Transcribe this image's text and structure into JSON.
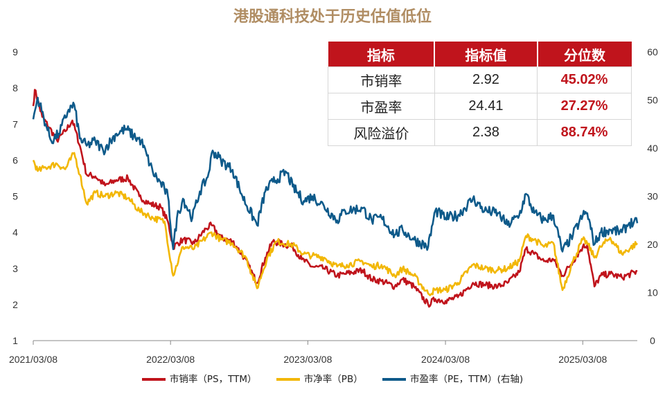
{
  "title": "港股通科技处于历史估值低位",
  "table": {
    "headers": [
      "指标",
      "指标值",
      "分位数"
    ],
    "rows": [
      {
        "name": "市销率",
        "value": "2.92",
        "pct": "45.02%"
      },
      {
        "name": "市盈率",
        "value": "24.41",
        "pct": "27.27%"
      },
      {
        "name": "风险溢价",
        "value": "2.38",
        "pct": "88.74%"
      }
    ]
  },
  "colors": {
    "ps": "#c0141c",
    "pb": "#f2b705",
    "pe": "#0e5a8a",
    "header_bg": "#c0141c",
    "title": "#b08d63"
  },
  "chart_data": {
    "type": "line",
    "title": "港股通科技处于历史估值低位",
    "x_ticks": [
      "2021/03/08",
      "2022/03/08",
      "2023/03/08",
      "2024/03/08",
      "2025/03/08"
    ],
    "x_range": [
      "2021/03/08",
      "2025/07/31"
    ],
    "left_axis": {
      "min": 1,
      "max": 9,
      "ticks": [
        1,
        2,
        3,
        4,
        5,
        6,
        7,
        8,
        9
      ]
    },
    "right_axis": {
      "min": 0,
      "max": 60,
      "ticks": [
        0,
        10,
        20,
        30,
        40,
        50,
        60
      ]
    },
    "legend_position": "bottom",
    "grid": false,
    "series": [
      {
        "name": "市销率（PS，TTM）",
        "axis": "left",
        "color": "#c0141c",
        "points": [
          [
            "2021/03/08",
            7.5
          ],
          [
            "2021/03/12",
            7.95
          ],
          [
            "2021/04/01",
            7.2
          ],
          [
            "2021/04/20",
            6.9
          ],
          [
            "2021/05/10",
            6.55
          ],
          [
            "2021/06/01",
            6.8
          ],
          [
            "2021/06/20",
            7.1
          ],
          [
            "2021/07/10",
            6.4
          ],
          [
            "2021/07/28",
            5.6
          ],
          [
            "2021/08/20",
            5.55
          ],
          [
            "2021/09/15",
            5.3
          ],
          [
            "2021/10/15",
            5.45
          ],
          [
            "2021/11/15",
            5.5
          ],
          [
            "2021/12/15",
            5.0
          ],
          [
            "2022/01/10",
            4.8
          ],
          [
            "2022/02/10",
            4.7
          ],
          [
            "2022/03/01",
            4.3
          ],
          [
            "2022/03/15",
            3.6
          ],
          [
            "2022/04/10",
            3.8
          ],
          [
            "2022/05/10",
            3.7
          ],
          [
            "2022/06/10",
            4.1
          ],
          [
            "2022/06/25",
            4.2
          ],
          [
            "2022/07/20",
            3.85
          ],
          [
            "2022/08/20",
            3.75
          ],
          [
            "2022/09/20",
            3.3
          ],
          [
            "2022/10/24",
            2.6
          ],
          [
            "2022/11/15",
            3.3
          ],
          [
            "2022/12/05",
            3.75
          ],
          [
            "2023/01/27",
            3.6
          ],
          [
            "2023/02/20",
            3.25
          ],
          [
            "2023/03/20",
            3.05
          ],
          [
            "2023/04/20",
            3.0
          ],
          [
            "2023/05/25",
            2.8
          ],
          [
            "2023/06/15",
            2.85
          ],
          [
            "2023/07/31",
            2.95
          ],
          [
            "2023/08/25",
            2.7
          ],
          [
            "2023/09/20",
            2.65
          ],
          [
            "2023/10/25",
            2.5
          ],
          [
            "2023/11/15",
            2.7
          ],
          [
            "2023/12/15",
            2.5
          ],
          [
            "2024/01/22",
            2.0
          ],
          [
            "2024/02/10",
            2.15
          ],
          [
            "2024/03/08",
            2.1
          ],
          [
            "2024/04/10",
            2.2
          ],
          [
            "2024/05/20",
            2.6
          ],
          [
            "2024/06/20",
            2.55
          ],
          [
            "2024/07/25",
            2.5
          ],
          [
            "2024/08/20",
            2.6
          ],
          [
            "2024/09/20",
            2.9
          ],
          [
            "2024/10/08",
            3.55
          ],
          [
            "2024/10/30",
            3.4
          ],
          [
            "2024/11/25",
            3.2
          ],
          [
            "2024/12/20",
            3.25
          ],
          [
            "2025/01/13",
            2.8
          ],
          [
            "2025/02/10",
            3.2
          ],
          [
            "2025/03/08",
            3.6
          ],
          [
            "2025/03/20",
            3.65
          ],
          [
            "2025/04/08",
            2.5
          ],
          [
            "2025/04/25",
            2.8
          ],
          [
            "2025/05/20",
            2.85
          ],
          [
            "2025/06/20",
            2.75
          ],
          [
            "2025/07/31",
            2.92
          ]
        ]
      },
      {
        "name": "市净率（PB）",
        "axis": "left",
        "color": "#f2b705",
        "points": [
          [
            "2021/03/08",
            6.0
          ],
          [
            "2021/03/20",
            5.7
          ],
          [
            "2021/04/10",
            5.8
          ],
          [
            "2021/05/10",
            5.9
          ],
          [
            "2021/06/01",
            5.75
          ],
          [
            "2021/06/25",
            6.2
          ],
          [
            "2021/07/10",
            5.6
          ],
          [
            "2021/07/28",
            4.8
          ],
          [
            "2021/08/20",
            5.1
          ],
          [
            "2021/09/15",
            5.0
          ],
          [
            "2021/10/15",
            5.1
          ],
          [
            "2021/11/15",
            4.95
          ],
          [
            "2021/12/15",
            4.6
          ],
          [
            "2022/01/20",
            4.4
          ],
          [
            "2022/02/20",
            4.3
          ],
          [
            "2022/03/15",
            2.8
          ],
          [
            "2022/04/10",
            3.6
          ],
          [
            "2022/05/10",
            3.55
          ],
          [
            "2022/06/25",
            4.0
          ],
          [
            "2022/07/20",
            3.8
          ],
          [
            "2022/08/20",
            3.7
          ],
          [
            "2022/09/25",
            3.3
          ],
          [
            "2022/10/24",
            2.45
          ],
          [
            "2022/11/20",
            3.3
          ],
          [
            "2022/12/15",
            3.75
          ],
          [
            "2023/01/27",
            3.65
          ],
          [
            "2023/02/25",
            3.4
          ],
          [
            "2023/03/20",
            3.35
          ],
          [
            "2023/04/20",
            3.3
          ],
          [
            "2023/05/25",
            3.05
          ],
          [
            "2023/06/20",
            3.1
          ],
          [
            "2023/07/31",
            3.2
          ],
          [
            "2023/08/25",
            3.05
          ],
          [
            "2023/09/20",
            3.1
          ],
          [
            "2023/10/25",
            2.8
          ],
          [
            "2023/11/15",
            3.0
          ],
          [
            "2023/12/15",
            2.8
          ],
          [
            "2024/01/22",
            2.3
          ],
          [
            "2024/02/10",
            2.4
          ],
          [
            "2024/03/08",
            2.4
          ],
          [
            "2024/04/10",
            2.6
          ],
          [
            "2024/05/20",
            3.1
          ],
          [
            "2024/06/20",
            3.0
          ],
          [
            "2024/07/25",
            2.95
          ],
          [
            "2024/08/20",
            3.0
          ],
          [
            "2024/09/20",
            3.2
          ],
          [
            "2024/10/08",
            3.9
          ],
          [
            "2024/10/30",
            3.8
          ],
          [
            "2024/11/25",
            3.6
          ],
          [
            "2024/12/20",
            3.7
          ],
          [
            "2025/01/13",
            2.4
          ],
          [
            "2025/02/10",
            3.2
          ],
          [
            "2025/03/08",
            3.8
          ],
          [
            "2025/03/20",
            3.7
          ],
          [
            "2025/04/08",
            3.3
          ],
          [
            "2025/04/25",
            3.6
          ],
          [
            "2025/05/20",
            3.85
          ],
          [
            "2025/06/20",
            3.4
          ],
          [
            "2025/07/31",
            3.7
          ]
        ]
      },
      {
        "name": "市盈率（PE，TTM）(右轴)",
        "axis": "right",
        "color": "#0e5a8a",
        "points": [
          [
            "2021/03/08",
            46
          ],
          [
            "2021/03/20",
            50.5
          ],
          [
            "2021/04/10",
            45
          ],
          [
            "2021/04/25",
            41.5
          ],
          [
            "2021/05/15",
            43
          ],
          [
            "2021/06/10",
            48
          ],
          [
            "2021/06/25",
            49
          ],
          [
            "2021/07/10",
            42
          ],
          [
            "2021/07/28",
            40.5
          ],
          [
            "2021/08/20",
            41.5
          ],
          [
            "2021/09/10",
            39.5
          ],
          [
            "2021/10/15",
            43
          ],
          [
            "2021/11/10",
            44
          ],
          [
            "2021/11/30",
            42.5
          ],
          [
            "2021/12/20",
            41.5
          ],
          [
            "2022/01/20",
            35
          ],
          [
            "2022/02/20",
            31.5
          ],
          [
            "2022/03/01",
            30
          ],
          [
            "2022/03/15",
            19
          ],
          [
            "2022/03/25",
            25.5
          ],
          [
            "2022/04/10",
            29.5
          ],
          [
            "2022/05/05",
            25.5
          ],
          [
            "2022/05/25",
            31
          ],
          [
            "2022/06/15",
            34
          ],
          [
            "2022/06/28",
            39.5
          ],
          [
            "2022/07/20",
            37.5
          ],
          [
            "2022/08/20",
            35.5
          ],
          [
            "2022/09/15",
            30
          ],
          [
            "2022/10/24",
            24
          ],
          [
            "2022/11/15",
            31
          ],
          [
            "2022/12/05",
            33
          ],
          [
            "2023/01/10",
            35
          ],
          [
            "2023/01/27",
            32
          ],
          [
            "2023/02/25",
            29
          ],
          [
            "2023/03/20",
            30
          ],
          [
            "2023/04/20",
            28
          ],
          [
            "2023/05/25",
            25
          ],
          [
            "2023/06/15",
            27
          ],
          [
            "2023/07/31",
            27.5
          ],
          [
            "2023/08/25",
            25
          ],
          [
            "2023/09/20",
            25.5
          ],
          [
            "2023/10/25",
            22
          ],
          [
            "2023/11/15",
            23
          ],
          [
            "2023/12/15",
            21
          ],
          [
            "2024/01/22",
            19.5
          ],
          [
            "2024/02/10",
            27
          ],
          [
            "2024/03/08",
            25.5
          ],
          [
            "2024/04/10",
            26
          ],
          [
            "2024/05/20",
            29.5
          ],
          [
            "2024/06/20",
            27
          ],
          [
            "2024/07/25",
            26.5
          ],
          [
            "2024/08/20",
            24
          ],
          [
            "2024/09/20",
            26
          ],
          [
            "2024/10/08",
            30.5
          ],
          [
            "2024/10/30",
            26.5
          ],
          [
            "2024/11/25",
            25
          ],
          [
            "2024/12/20",
            26
          ],
          [
            "2025/01/13",
            18.5
          ],
          [
            "2025/02/10",
            22
          ],
          [
            "2025/03/08",
            26
          ],
          [
            "2025/03/20",
            26.5
          ],
          [
            "2025/04/08",
            20
          ],
          [
            "2025/04/25",
            22.5
          ],
          [
            "2025/05/20",
            23
          ],
          [
            "2025/06/20",
            22.5
          ],
          [
            "2025/07/10",
            24.5
          ],
          [
            "2025/07/31",
            24.41
          ]
        ]
      }
    ]
  }
}
